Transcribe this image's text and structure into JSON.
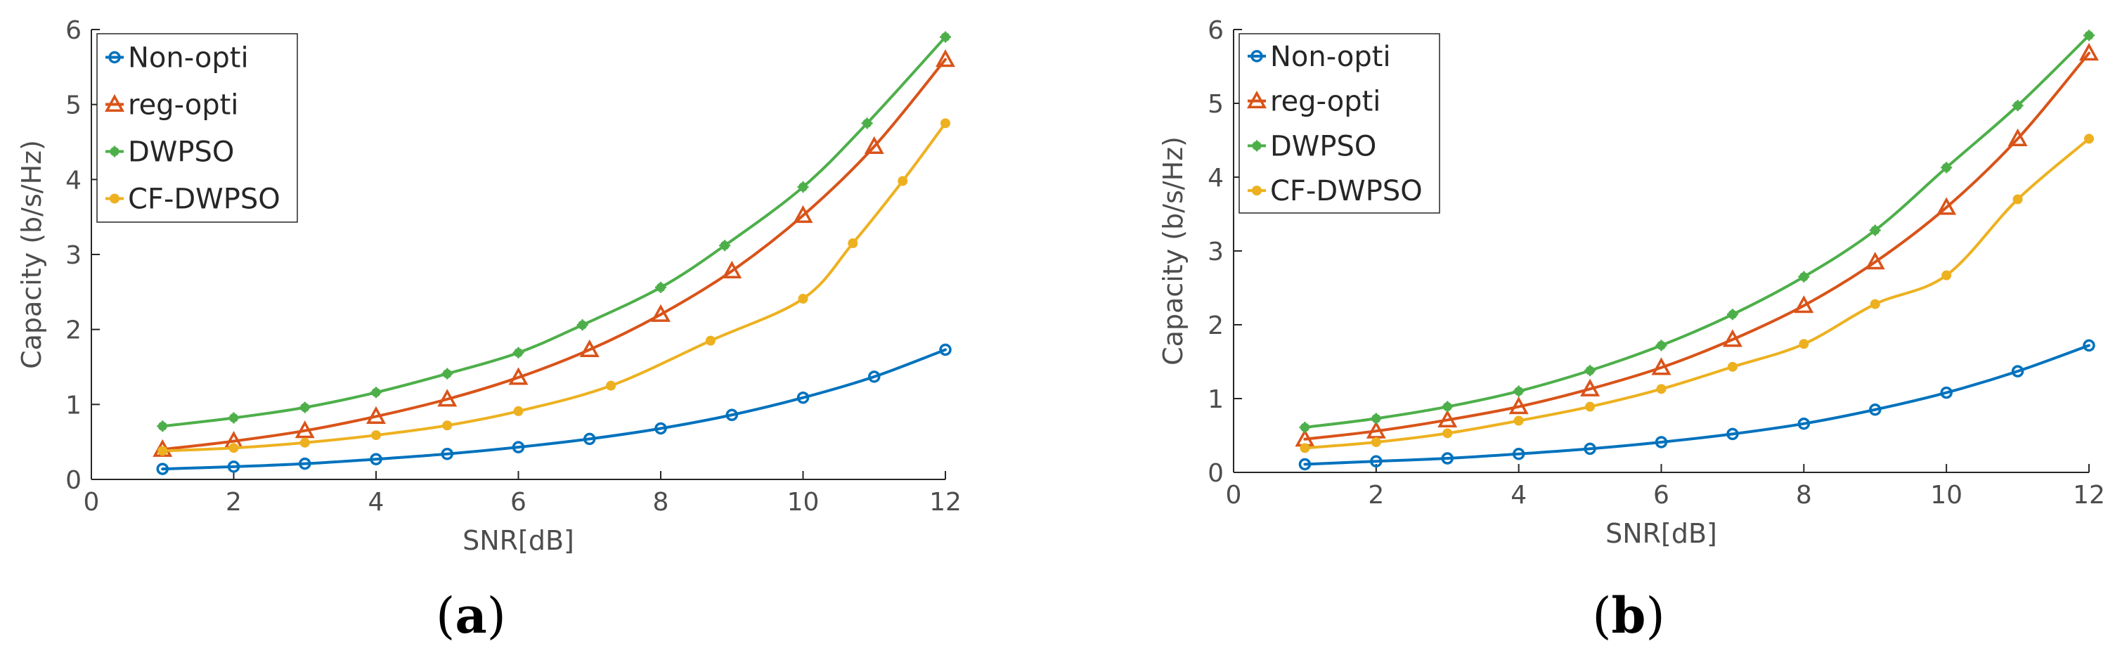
{
  "chart_data": [
    {
      "type": "line",
      "panel_label": "a",
      "xlabel": "SNR[dB]",
      "ylabel": "Capacity (b/s/Hz)",
      "xlim": [
        0,
        12
      ],
      "ylim": [
        0,
        6
      ],
      "xticks": [
        0,
        2,
        4,
        6,
        8,
        10,
        12
      ],
      "yticks": [
        0,
        1,
        2,
        3,
        4,
        5,
        6
      ],
      "legend_position": "top-left",
      "series": [
        {
          "name": "Non-opti",
          "color": "#0072BD",
          "marker": "circle",
          "x": [
            1,
            2,
            3,
            4,
            5,
            6,
            7,
            8,
            9,
            10,
            11,
            12
          ],
          "y": [
            0.14,
            0.17,
            0.21,
            0.27,
            0.34,
            0.43,
            0.54,
            0.68,
            0.86,
            1.09,
            1.37,
            1.73
          ]
        },
        {
          "name": "reg-opti",
          "color": "#D95319",
          "marker": "triangle",
          "x": [
            1,
            2,
            3,
            4,
            5,
            6,
            7,
            8,
            9,
            10,
            11,
            12
          ],
          "y": [
            0.4,
            0.51,
            0.65,
            0.84,
            1.07,
            1.36,
            1.73,
            2.2,
            2.78,
            3.52,
            4.44,
            5.6
          ]
        },
        {
          "name": "DWPSO",
          "color": "#4DAF4A",
          "marker": "star",
          "x": [
            1,
            2,
            3,
            4,
            5,
            6,
            6.9,
            8,
            8.9,
            10,
            10.9,
            12
          ],
          "y": [
            0.71,
            0.82,
            0.96,
            1.16,
            1.41,
            1.69,
            2.06,
            2.56,
            3.12,
            3.9,
            4.75,
            5.9
          ]
        },
        {
          "name": "CF-DWPSO",
          "color": "#EDB120",
          "marker": "dot",
          "x": [
            1,
            2,
            3,
            4,
            5,
            6,
            7.3,
            8.7,
            10,
            10.7,
            11.4,
            12
          ],
          "y": [
            0.38,
            0.42,
            0.49,
            0.59,
            0.72,
            0.91,
            1.25,
            1.85,
            2.41,
            3.15,
            3.98,
            4.75
          ]
        }
      ]
    },
    {
      "type": "line",
      "panel_label": "b",
      "xlabel": "SNR[dB]",
      "ylabel": "Capacity (b/s/Hz)",
      "xlim": [
        0,
        12
      ],
      "ylim": [
        0,
        6
      ],
      "xticks": [
        0,
        2,
        4,
        6,
        8,
        10,
        12
      ],
      "yticks": [
        0,
        1,
        2,
        3,
        4,
        5,
        6
      ],
      "legend_position": "top-left",
      "series": [
        {
          "name": "Non-opti",
          "color": "#0072BD",
          "marker": "circle",
          "x": [
            1,
            2,
            3,
            4,
            5,
            6,
            7,
            8,
            9,
            10,
            11,
            12
          ],
          "y": [
            0.11,
            0.15,
            0.19,
            0.25,
            0.32,
            0.41,
            0.52,
            0.66,
            0.85,
            1.08,
            1.37,
            1.72
          ]
        },
        {
          "name": "reg-opti",
          "color": "#D95319",
          "marker": "triangle",
          "x": [
            1,
            2,
            3,
            4,
            5,
            6,
            7,
            8,
            9,
            10,
            11,
            12
          ],
          "y": [
            0.45,
            0.56,
            0.71,
            0.89,
            1.13,
            1.42,
            1.8,
            2.26,
            2.85,
            3.59,
            4.52,
            5.68
          ]
        },
        {
          "name": "DWPSO",
          "color": "#4DAF4A",
          "marker": "star",
          "x": [
            1,
            2,
            3,
            4,
            5,
            6,
            7,
            8,
            9,
            10,
            11,
            12
          ],
          "y": [
            0.61,
            0.73,
            0.89,
            1.1,
            1.38,
            1.72,
            2.14,
            2.65,
            3.28,
            4.13,
            4.97,
            5.92
          ]
        },
        {
          "name": "CF-DWPSO",
          "color": "#EDB120",
          "marker": "dot",
          "x": [
            1,
            2,
            3,
            4,
            5,
            6,
            7,
            8,
            9,
            10,
            11,
            12
          ],
          "y": [
            0.33,
            0.41,
            0.53,
            0.7,
            0.89,
            1.13,
            1.43,
            1.74,
            2.28,
            2.67,
            3.7,
            4.52
          ]
        }
      ]
    }
  ]
}
